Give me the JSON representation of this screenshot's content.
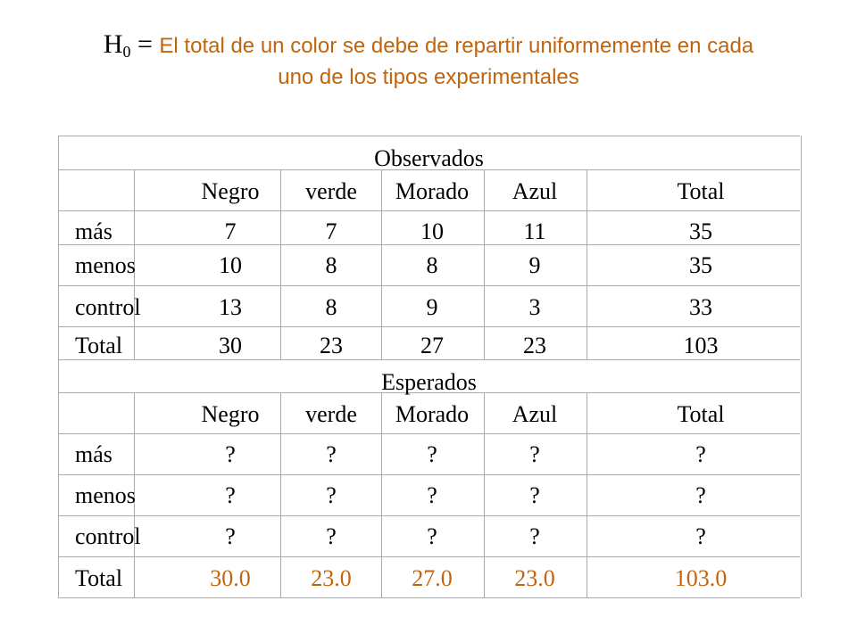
{
  "hypothesis": {
    "h": "H",
    "sub": "0",
    "eq": " = ",
    "line1": "El total de un color se debe de repartir uniformemente en cada",
    "line2": "uno de los tipos experimentales"
  },
  "observed": {
    "title": "Observados",
    "headers": [
      "",
      "Negro",
      "verde",
      "Morado",
      "Azul",
      "Total"
    ],
    "rows": [
      [
        "más",
        "7",
        "7",
        "10",
        "11",
        "35"
      ],
      [
        "menos",
        "10",
        "8",
        "8",
        "9",
        "35"
      ],
      [
        "control",
        "13",
        "8",
        "9",
        "3",
        "33"
      ],
      [
        "Total",
        "30",
        "23",
        "27",
        "23",
        "103"
      ]
    ]
  },
  "expected": {
    "title": "Esperados",
    "headers": [
      "",
      "Negro",
      "verde",
      "Morado",
      "Azul",
      "Total"
    ],
    "rows": [
      [
        "más",
        "?",
        "?",
        "?",
        "?",
        "?"
      ],
      [
        "menos",
        "?",
        "?",
        "?",
        "?",
        "?"
      ],
      [
        "control",
        "?",
        "?",
        "?",
        "?",
        "?"
      ],
      [
        "Total",
        "30.0",
        "23.0",
        "27.0",
        "23.0",
        "103.0"
      ]
    ]
  },
  "colors": {
    "accent": "#C0650F",
    "grid": "#aaaaaa"
  }
}
